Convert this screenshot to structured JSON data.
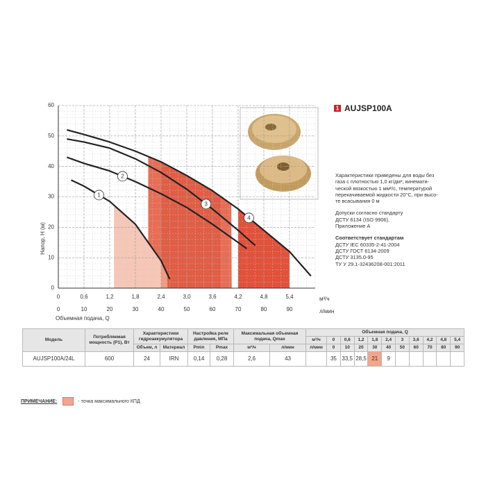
{
  "header": {
    "number": "1",
    "title": "AUJSP100A"
  },
  "chart_data": {
    "type": "line",
    "y_label": "Напор, H (м)",
    "x_label": "Объемная подача, Q",
    "x_unit": "м³/ч",
    "x2_unit": "л/мин",
    "xlim": [
      0,
      6
    ],
    "ylim": [
      0,
      60
    ],
    "x2lim": [
      0,
      100
    ],
    "xticks": [
      0,
      {
        "value": 0.6,
        "label": "0,6"
      },
      {
        "value": 1.2,
        "label": "1,2"
      },
      {
        "value": 1.8,
        "label": "1,8"
      },
      {
        "value": 2.4,
        "label": "2,4"
      },
      {
        "value": 3.0,
        "label": "3,0"
      },
      {
        "value": 3.6,
        "label": "3,6"
      },
      {
        "value": 4.2,
        "label": "4,2"
      },
      {
        "value": 4.8,
        "label": "4,8"
      },
      {
        "value": 5.4,
        "label": "5,4"
      }
    ],
    "x2ticks": [
      0,
      10,
      20,
      30,
      40,
      50,
      60,
      70,
      80,
      90
    ],
    "yticks": [
      0,
      10,
      20,
      30,
      40,
      50,
      60
    ],
    "grid": true,
    "series": [
      {
        "name": "1",
        "color": "#222222",
        "x": [
          0.3,
          0.6,
          1.2,
          1.8,
          2.4,
          2.6
        ],
        "values": [
          35.5,
          33.5,
          28.5,
          21,
          9,
          3
        ]
      },
      {
        "name": "2",
        "color": "#222222",
        "x": [
          0.2,
          0.6,
          1.2,
          1.8,
          2.4,
          3.0,
          3.6,
          4.2,
          4.4
        ],
        "values": [
          43,
          41,
          38.5,
          35,
          31,
          26.5,
          21,
          15,
          13
        ]
      },
      {
        "name": "3",
        "color": "#222222",
        "x": [
          0.2,
          0.6,
          1.2,
          1.8,
          2.4,
          3.0,
          3.6,
          4.2,
          4.6
        ],
        "values": [
          49,
          48,
          46,
          42.5,
          38,
          32.5,
          26,
          19,
          14
        ]
      },
      {
        "name": "4",
        "color": "#222222",
        "x": [
          0.2,
          0.6,
          1.2,
          1.8,
          2.4,
          3.0,
          3.6,
          4.2,
          4.8,
          5.4,
          5.9
        ],
        "values": [
          52,
          50.5,
          48,
          45,
          41.5,
          37,
          32,
          26,
          19,
          12,
          4
        ]
      }
    ]
  },
  "description": [
    [
      "Характеристики приведены для воды без",
      "газа с плотностью 1,0 кг/дм³, кинемати-",
      "ческой вязкостью 1 мм²/с, температурой",
      "перекачиваемой жидкости 20°С, при высо-",
      "те всасывания 0 м"
    ],
    [
      "Допуски согласно стандарту",
      "ДСТУ 6134 (ISO 9906),",
      "Приложение А"
    ],
    [
      "Соответствует стандартам",
      "ДСТУ IEC 60335-2-41-2004",
      "ДСТУ ГОСТ 6134-2009",
      "ДСТУ 3135.0-95",
      "ТУ У 29.1-32436208-001:2011"
    ]
  ],
  "table": {
    "group_headers": [
      "Модель",
      "Потребляемая мощность (P1), Вт",
      "Характеристики гидроаккумулятора",
      "Настройка реле давления, МПа",
      "Максимальная объемная подача, Qmax",
      "Объемная подача, Q"
    ],
    "sub_headers": [
      "Объем, л",
      "Материал",
      "Pmin",
      "Pmax",
      "м³/ч",
      "л/мин"
    ],
    "flow_units": [
      "м³/ч",
      "л/мин"
    ],
    "flow_m3h": [
      "0",
      "0,6",
      "1,2",
      "1,8",
      "2,4",
      "3",
      "3,6",
      "4,2",
      "4,8",
      "5,4"
    ],
    "flow_lmin": [
      "0",
      "10",
      "20",
      "30",
      "40",
      "50",
      "60",
      "70",
      "80",
      "90"
    ],
    "rows": [
      [
        "AUJSP100A/24L",
        "600",
        "24",
        "IRN",
        "0,14",
        "0,28",
        "2,6",
        "43",
        null,
        "35",
        "33,5",
        "28,5",
        "21",
        "9",
        null,
        null,
        null,
        null,
        null
      ]
    ]
  },
  "note": {
    "label": "ПРИМЕЧАНИЕ:",
    "text": "- точка максимального КПД"
  }
}
